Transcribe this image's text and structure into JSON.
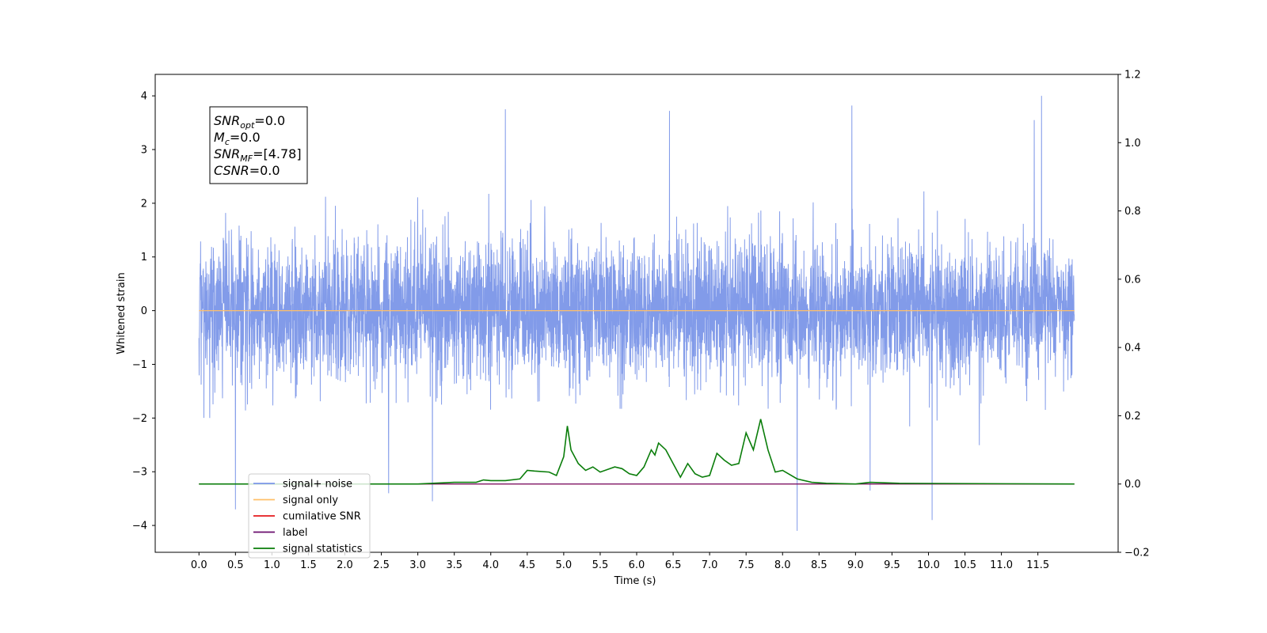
{
  "chart_data": {
    "type": "line",
    "title": "",
    "xlabel": "Time (s)",
    "ylabel": "Whitened strain",
    "xlim": [
      -0.6,
      12.6
    ],
    "ylim": [
      -4.5,
      4.4
    ],
    "y2lim": [
      -0.2,
      1.2
    ],
    "x_ticks": [
      0.0,
      0.5,
      1.0,
      1.5,
      2.0,
      2.5,
      3.0,
      3.5,
      4.0,
      4.5,
      5.0,
      5.5,
      6.0,
      6.5,
      7.0,
      7.5,
      8.0,
      8.5,
      9.0,
      9.5,
      10.0,
      10.5,
      11.0,
      11.5
    ],
    "x_tick_labels": [
      "0.0",
      "0.5",
      "1.0",
      "1.5",
      "2.0",
      "2.5",
      "3.0",
      "3.5",
      "4.0",
      "4.5",
      "5.0",
      "5.5",
      "6.0",
      "6.5",
      "7.0",
      "7.5",
      "8.0",
      "8.5",
      "9.0",
      "9.5",
      "10.0",
      "10.5",
      "11.0",
      "11.5"
    ],
    "y_ticks": [
      -4,
      -3,
      -2,
      -1,
      0,
      1,
      2,
      3,
      4
    ],
    "y_tick_labels": [
      "−4",
      "−3",
      "−2",
      "−1",
      "0",
      "1",
      "2",
      "3",
      "4"
    ],
    "y2_ticks": [
      -0.2,
      0.0,
      0.2,
      0.4,
      0.6,
      0.8,
      1.0,
      1.2
    ],
    "y2_tick_labels": [
      "−0.2",
      "0.0",
      "0.2",
      "0.4",
      "0.6",
      "0.8",
      "1.0",
      "1.2"
    ],
    "grid": false,
    "legend_position": "lower-left",
    "series": [
      {
        "name": "signal+ noise",
        "axis": "left",
        "color": "#7b96e8",
        "x_range": [
          0.0,
          12.0
        ],
        "typical_envelope": [
          -1.8,
          1.8
        ],
        "notable_peaks": [
          {
            "x": 4.2,
            "y": 3.75
          },
          {
            "x": 6.45,
            "y": 3.72
          },
          {
            "x": 8.95,
            "y": 3.82
          },
          {
            "x": 11.55,
            "y": 4.0
          },
          {
            "x": 11.45,
            "y": 3.55
          }
        ],
        "notable_troughs": [
          {
            "x": 0.5,
            "y": -3.7
          },
          {
            "x": 2.6,
            "y": -3.4
          },
          {
            "x": 3.2,
            "y": -3.55
          },
          {
            "x": 8.2,
            "y": -4.1
          },
          {
            "x": 10.05,
            "y": -3.9
          },
          {
            "x": 9.2,
            "y": -3.35
          }
        ]
      },
      {
        "name": "signal only",
        "axis": "left",
        "color": "#ffbf69",
        "x": [
          0.0,
          12.0
        ],
        "y": [
          0.0,
          0.0
        ]
      },
      {
        "name": "cumilative SNR",
        "axis": "right",
        "color": "#e41a1c",
        "x": [
          0.0,
          12.0
        ],
        "y": [
          0.0,
          0.0
        ]
      },
      {
        "name": "label",
        "axis": "right",
        "color": "#6a0d6d",
        "x": [
          0.0,
          12.0
        ],
        "y": [
          0.0,
          0.0
        ]
      },
      {
        "name": "signal statistics",
        "axis": "right",
        "color": "#0a7d0a",
        "x": [
          0.0,
          3.0,
          3.5,
          3.8,
          3.9,
          4.0,
          4.2,
          4.4,
          4.5,
          4.6,
          4.8,
          4.9,
          5.0,
          5.05,
          5.1,
          5.2,
          5.3,
          5.4,
          5.5,
          5.7,
          5.8,
          5.9,
          6.0,
          6.1,
          6.2,
          6.25,
          6.3,
          6.4,
          6.5,
          6.6,
          6.7,
          6.8,
          6.9,
          7.0,
          7.1,
          7.2,
          7.3,
          7.4,
          7.5,
          7.6,
          7.7,
          7.8,
          7.9,
          8.0,
          8.2,
          8.4,
          8.6,
          9.0,
          9.2,
          9.6,
          12.0
        ],
        "y": [
          0.0,
          0.0,
          0.005,
          0.005,
          0.012,
          0.01,
          0.01,
          0.015,
          0.04,
          0.038,
          0.035,
          0.025,
          0.08,
          0.17,
          0.1,
          0.06,
          0.04,
          0.05,
          0.035,
          0.05,
          0.045,
          0.03,
          0.025,
          0.05,
          0.1,
          0.085,
          0.12,
          0.1,
          0.06,
          0.02,
          0.06,
          0.03,
          0.02,
          0.025,
          0.09,
          0.07,
          0.055,
          0.06,
          0.15,
          0.1,
          0.19,
          0.1,
          0.035,
          0.04,
          0.015,
          0.005,
          0.002,
          0.0,
          0.005,
          0.002,
          0.0
        ]
      }
    ],
    "annotation": {
      "snr_opt": {
        "base": "SNR",
        "sub": "opt",
        "rest": "=0.0"
      },
      "mc": {
        "base": "M",
        "sub": "c",
        "rest": "=0.0"
      },
      "snr_mf": {
        "base": "SNR",
        "sub": "MF",
        "rest": "=[4.78]"
      },
      "csnr": {
        "base": "CSNR",
        "sub": "",
        "rest": "=0.0"
      }
    }
  }
}
